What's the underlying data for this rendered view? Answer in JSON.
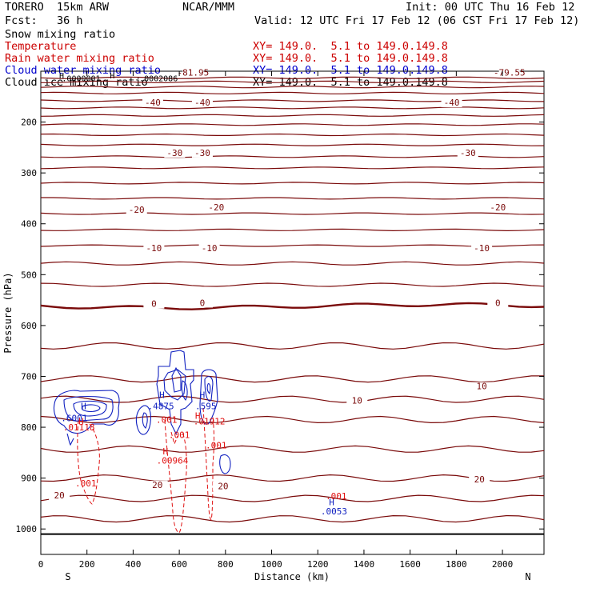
{
  "header": {
    "model": "TORERO  15km ARW",
    "center": "NCAR/MMM",
    "init": "Init: 00 UTC Thu 16 Feb 12",
    "fcst": "Fcst:   36 h",
    "valid": "Valid: 12 UTC Fri 17 Feb 12 (06 CST Fri 17 Feb 12)"
  },
  "fields": [
    {
      "name": "Snow mixing ratio",
      "xy": "",
      "color": "#000000"
    },
    {
      "name": "Temperature",
      "xy": "XY= 149.0.  5.1 to 149.0.149.8",
      "color": "#cc0000"
    },
    {
      "name": "Rain water mixing ratio",
      "xy": "XY= 149.0.  5.1 to 149.0.149.8",
      "color": "#cc0000"
    },
    {
      "name": "Cloud water mixing ratio",
      "xy": "XY= 149.0.  5.1 to 149.0.149.8",
      "color": "#0000cc"
    },
    {
      "name": "Cloud ice mixing ratio",
      "xy": "XY= 149.0.  5.1 to 149.0.149.8",
      "color": "#000000"
    }
  ],
  "colors": {
    "temperature": "#7a0a0a",
    "rain": "#e01010",
    "cloud_water": "#1020c0",
    "ground": "#000000"
  },
  "chart_data": {
    "type": "line",
    "title": "",
    "xlabel": "Distance (km)",
    "ylabel": "Pressure (hPa)",
    "xlim": [
      0,
      2180
    ],
    "ylim": [
      1050,
      100
    ],
    "x_ticks": [
      "0",
      "200",
      "400",
      "600",
      "800",
      "1000",
      "1200",
      "1400",
      "1600",
      "1800",
      "2000"
    ],
    "y_ticks": [
      "200",
      "300",
      "400",
      "500",
      "600",
      "700",
      "800",
      "900",
      "1000"
    ],
    "x_end_labels": {
      "left": "S",
      "right": "N"
    },
    "surface_pressure_hPa": 1010,
    "isotherm_pressures_hPa": [
      113,
      121,
      131,
      143,
      158,
      172,
      187,
      205,
      225,
      245,
      268,
      290,
      320,
      350,
      380,
      412,
      443,
      478,
      520,
      562,
      640,
      705,
      745,
      785,
      843,
      900,
      940,
      980
    ],
    "temperature_labels": [
      {
        "text": "-81.95",
        "x": 660,
        "p": 107
      },
      {
        "text": "-79.55",
        "x": 2030,
        "p": 107
      },
      {
        "text": "-40",
        "x": 485,
        "p": 166
      },
      {
        "text": "-40",
        "x": 700,
        "p": 166
      },
      {
        "text": "-40",
        "x": 1780,
        "p": 166
      },
      {
        "text": "-30",
        "x": 580,
        "p": 265
      },
      {
        "text": "-30",
        "x": 700,
        "p": 265
      },
      {
        "text": "-30",
        "x": 1850,
        "p": 265
      },
      {
        "text": "-20",
        "x": 415,
        "p": 377
      },
      {
        "text": "-20",
        "x": 760,
        "p": 372
      },
      {
        "text": "-20",
        "x": 1980,
        "p": 372
      },
      {
        "text": "-10",
        "x": 490,
        "p": 452
      },
      {
        "text": "-10",
        "x": 730,
        "p": 452
      },
      {
        "text": "-10",
        "x": 1910,
        "p": 452
      },
      {
        "text": "0",
        "x": 490,
        "p": 562
      },
      {
        "text": "0",
        "x": 700,
        "p": 560
      },
      {
        "text": "0",
        "x": 1980,
        "p": 560
      },
      {
        "text": "10",
        "x": 1370,
        "p": 752
      },
      {
        "text": "10",
        "x": 1910,
        "p": 724
      },
      {
        "text": "20",
        "x": 80,
        "p": 938
      },
      {
        "text": "20",
        "x": 505,
        "p": 918
      },
      {
        "text": "20",
        "x": 790,
        "p": 920
      },
      {
        "text": "20",
        "x": 1900,
        "p": 907
      }
    ],
    "cloud_ice_labels": [
      {
        "text": ".0000001",
        "x": 175,
        "p": 113
      },
      {
        "text": ".0002086",
        "x": 510,
        "p": 113
      },
      {
        "text": "H",
        "x": 90,
        "p": 108
      },
      {
        "text": "H",
        "x": 310,
        "p": 108
      }
    ],
    "cloud_water_labels": [
      {
        "text": "H",
        "x": 185,
        "p": 758
      },
      {
        "text": ".6001",
        "x": 145,
        "p": 782
      },
      {
        "text": "H",
        "x": 525,
        "p": 736
      },
      {
        "text": ".4875",
        "x": 520,
        "p": 758
      },
      {
        "text": "H",
        "x": 700,
        "p": 736
      },
      {
        "text": ".595",
        "x": 715,
        "p": 758
      },
      {
        "text": "H",
        "x": 1260,
        "p": 947
      },
      {
        "text": ".0053",
        "x": 1270,
        "p": 965
      }
    ],
    "rain_labels": [
      {
        "text": "H",
        "x": 175,
        "p": 788
      },
      {
        "text": ".01118",
        "x": 165,
        "p": 800
      },
      {
        "text": ".001",
        "x": 545,
        "p": 785
      },
      {
        "text": ".001",
        "x": 600,
        "p": 815
      },
      {
        "text": "H",
        "x": 540,
        "p": 847
      },
      {
        "text": ".00964",
        "x": 570,
        "p": 865
      },
      {
        "text": "H",
        "x": 680,
        "p": 777
      },
      {
        "text": ".01912",
        "x": 730,
        "p": 788
      },
      {
        "text": ".001",
        "x": 760,
        "p": 835
      },
      {
        "text": ".001",
        "x": 195,
        "p": 910
      },
      {
        "text": ".001",
        "x": 1280,
        "p": 935
      }
    ]
  }
}
